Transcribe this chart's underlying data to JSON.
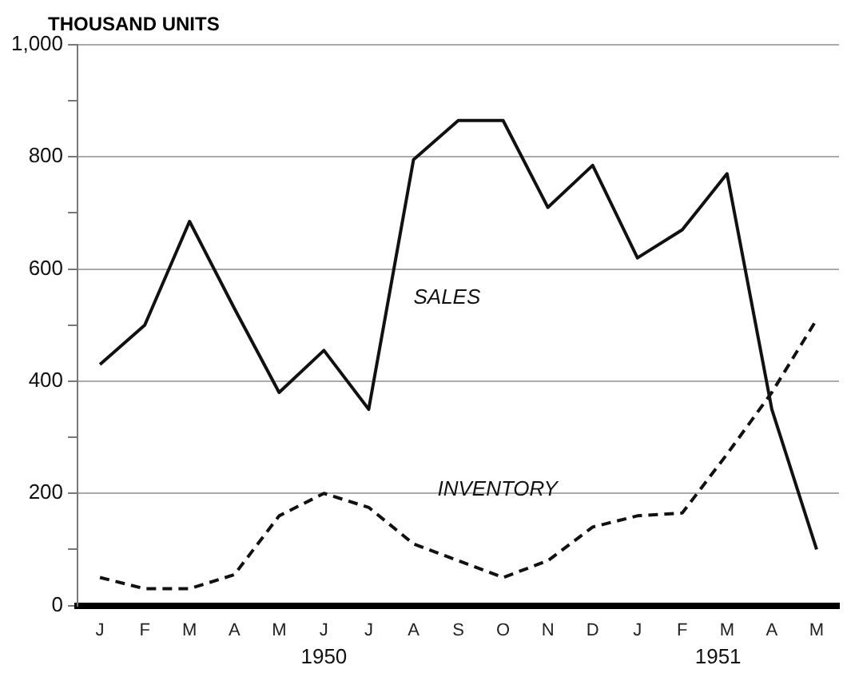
{
  "chart_data": {
    "type": "line",
    "ylabel": "THOUSAND UNITS",
    "categories": [
      "J",
      "F",
      "M",
      "A",
      "M",
      "J",
      "J",
      "A",
      "S",
      "O",
      "N",
      "D",
      "J",
      "F",
      "M",
      "A",
      "M"
    ],
    "series": [
      {
        "name": "SALES",
        "color": "#111111",
        "line_style": "solid",
        "values": [
          430,
          500,
          685,
          530,
          380,
          455,
          350,
          795,
          865,
          865,
          710,
          785,
          620,
          670,
          770,
          350,
          100
        ]
      },
      {
        "name": "INVENTORY",
        "color": "#111111",
        "line_style": "dashed",
        "values": [
          50,
          30,
          30,
          55,
          160,
          200,
          175,
          110,
          80,
          50,
          80,
          140,
          160,
          165,
          270,
          380,
          510
        ]
      }
    ],
    "ylim": [
      0,
      1000
    ],
    "yticks": [
      0,
      {
        "value": 100,
        "label": null
      },
      200,
      {
        "value": 300,
        "label": null
      },
      400,
      {
        "value": 500,
        "label": null
      },
      600,
      {
        "value": 700,
        "label": null
      },
      800,
      {
        "value": 900,
        "label": null
      },
      {
        "value": 1000,
        "label": "1,000"
      }
    ],
    "grid": "y",
    "legend": false,
    "marker": "none",
    "annotations": [
      "1950",
      "1951"
    ]
  }
}
